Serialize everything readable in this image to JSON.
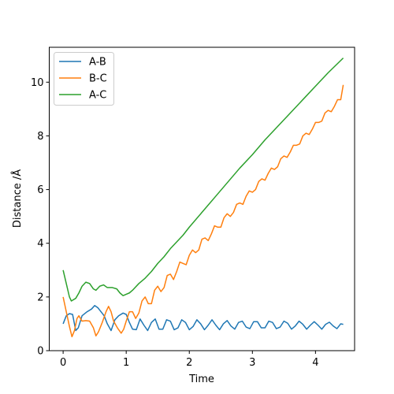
{
  "chart_data": {
    "type": "line",
    "title": "",
    "xlabel": "Time",
    "ylabel": "Distance /Å",
    "xlim": [
      -0.22,
      4.62
    ],
    "ylim": [
      0,
      11.3
    ],
    "xticks": [
      0,
      1,
      2,
      3,
      4
    ],
    "yticks": [
      0,
      2,
      4,
      6,
      8,
      10
    ],
    "grid": false,
    "legend": "top-left",
    "series": [
      {
        "name": "A-B",
        "color": "#1f77b4",
        "points": [
          [
            0,
            1.0
          ],
          [
            0.05,
            1.3
          ],
          [
            0.1,
            1.38
          ],
          [
            0.15,
            1.35
          ],
          [
            0.2,
            0.75
          ],
          [
            0.24,
            0.85
          ],
          [
            0.3,
            1.3
          ],
          [
            0.38,
            1.45
          ],
          [
            0.45,
            1.55
          ],
          [
            0.5,
            1.68
          ],
          [
            0.55,
            1.6
          ],
          [
            0.6,
            1.45
          ],
          [
            0.65,
            1.3
          ],
          [
            0.7,
            1.0
          ],
          [
            0.76,
            0.75
          ],
          [
            0.82,
            1.15
          ],
          [
            0.88,
            1.3
          ],
          [
            0.95,
            1.4
          ],
          [
            1.0,
            1.35
          ],
          [
            1.05,
            1.05
          ],
          [
            1.1,
            0.8
          ],
          [
            1.16,
            0.78
          ],
          [
            1.22,
            1.18
          ],
          [
            1.28,
            0.95
          ],
          [
            1.34,
            0.75
          ],
          [
            1.4,
            1.05
          ],
          [
            1.46,
            1.18
          ],
          [
            1.52,
            0.8
          ],
          [
            1.58,
            0.8
          ],
          [
            1.64,
            1.15
          ],
          [
            1.7,
            1.1
          ],
          [
            1.76,
            0.78
          ],
          [
            1.82,
            0.85
          ],
          [
            1.88,
            1.15
          ],
          [
            1.94,
            1.05
          ],
          [
            2.0,
            0.78
          ],
          [
            2.06,
            0.9
          ],
          [
            2.12,
            1.15
          ],
          [
            2.18,
            1.0
          ],
          [
            2.24,
            0.78
          ],
          [
            2.3,
            0.95
          ],
          [
            2.36,
            1.15
          ],
          [
            2.42,
            0.95
          ],
          [
            2.48,
            0.78
          ],
          [
            2.54,
            1.0
          ],
          [
            2.6,
            1.12
          ],
          [
            2.66,
            0.92
          ],
          [
            2.72,
            0.8
          ],
          [
            2.78,
            1.05
          ],
          [
            2.84,
            1.1
          ],
          [
            2.9,
            0.88
          ],
          [
            2.96,
            0.82
          ],
          [
            3.02,
            1.08
          ],
          [
            3.08,
            1.08
          ],
          [
            3.14,
            0.85
          ],
          [
            3.2,
            0.85
          ],
          [
            3.26,
            1.1
          ],
          [
            3.32,
            1.05
          ],
          [
            3.38,
            0.82
          ],
          [
            3.44,
            0.88
          ],
          [
            3.5,
            1.1
          ],
          [
            3.56,
            1.02
          ],
          [
            3.62,
            0.8
          ],
          [
            3.68,
            0.92
          ],
          [
            3.74,
            1.1
          ],
          [
            3.8,
            0.98
          ],
          [
            3.86,
            0.8
          ],
          [
            3.92,
            0.95
          ],
          [
            3.98,
            1.08
          ],
          [
            4.04,
            0.95
          ],
          [
            4.1,
            0.8
          ],
          [
            4.16,
            0.98
          ],
          [
            4.22,
            1.06
          ],
          [
            4.28,
            0.92
          ],
          [
            4.34,
            0.82
          ],
          [
            4.4,
            1.0
          ],
          [
            4.44,
            0.98
          ]
        ]
      },
      {
        "name": "B-C",
        "color": "#ff7f0e",
        "points": [
          [
            0,
            2.0
          ],
          [
            0.05,
            1.45
          ],
          [
            0.1,
            0.9
          ],
          [
            0.14,
            0.52
          ],
          [
            0.18,
            0.75
          ],
          [
            0.22,
            1.2
          ],
          [
            0.25,
            1.3
          ],
          [
            0.3,
            1.1
          ],
          [
            0.36,
            1.12
          ],
          [
            0.42,
            1.1
          ],
          [
            0.48,
            0.85
          ],
          [
            0.52,
            0.55
          ],
          [
            0.56,
            0.7
          ],
          [
            0.62,
            1.05
          ],
          [
            0.68,
            1.45
          ],
          [
            0.72,
            1.65
          ],
          [
            0.76,
            1.45
          ],
          [
            0.8,
            1.1
          ],
          [
            0.86,
            0.85
          ],
          [
            0.92,
            0.65
          ],
          [
            0.96,
            0.8
          ],
          [
            1.0,
            1.1
          ],
          [
            1.05,
            1.45
          ],
          [
            1.1,
            1.45
          ],
          [
            1.15,
            1.2
          ],
          [
            1.2,
            1.4
          ],
          [
            1.25,
            1.85
          ],
          [
            1.3,
            2.0
          ],
          [
            1.35,
            1.75
          ],
          [
            1.4,
            1.75
          ],
          [
            1.45,
            2.25
          ],
          [
            1.5,
            2.4
          ],
          [
            1.55,
            2.2
          ],
          [
            1.6,
            2.35
          ],
          [
            1.65,
            2.8
          ],
          [
            1.7,
            2.85
          ],
          [
            1.75,
            2.65
          ],
          [
            1.8,
            2.95
          ],
          [
            1.85,
            3.3
          ],
          [
            1.9,
            3.25
          ],
          [
            1.95,
            3.2
          ],
          [
            2.0,
            3.55
          ],
          [
            2.05,
            3.75
          ],
          [
            2.1,
            3.65
          ],
          [
            2.15,
            3.75
          ],
          [
            2.2,
            4.15
          ],
          [
            2.25,
            4.2
          ],
          [
            2.3,
            4.1
          ],
          [
            2.35,
            4.35
          ],
          [
            2.4,
            4.65
          ],
          [
            2.45,
            4.6
          ],
          [
            2.5,
            4.6
          ],
          [
            2.55,
            4.95
          ],
          [
            2.6,
            5.1
          ],
          [
            2.65,
            5.0
          ],
          [
            2.7,
            5.15
          ],
          [
            2.75,
            5.45
          ],
          [
            2.8,
            5.5
          ],
          [
            2.85,
            5.45
          ],
          [
            2.9,
            5.75
          ],
          [
            2.95,
            5.95
          ],
          [
            3.0,
            5.9
          ],
          [
            3.05,
            6.0
          ],
          [
            3.1,
            6.3
          ],
          [
            3.15,
            6.4
          ],
          [
            3.2,
            6.35
          ],
          [
            3.25,
            6.6
          ],
          [
            3.3,
            6.8
          ],
          [
            3.35,
            6.75
          ],
          [
            3.4,
            6.85
          ],
          [
            3.45,
            7.15
          ],
          [
            3.5,
            7.25
          ],
          [
            3.55,
            7.2
          ],
          [
            3.6,
            7.4
          ],
          [
            3.65,
            7.65
          ],
          [
            3.7,
            7.65
          ],
          [
            3.75,
            7.7
          ],
          [
            3.8,
            8.0
          ],
          [
            3.85,
            8.1
          ],
          [
            3.9,
            8.05
          ],
          [
            3.95,
            8.25
          ],
          [
            4.0,
            8.5
          ],
          [
            4.05,
            8.5
          ],
          [
            4.1,
            8.55
          ],
          [
            4.15,
            8.85
          ],
          [
            4.2,
            8.95
          ],
          [
            4.25,
            8.9
          ],
          [
            4.3,
            9.1
          ],
          [
            4.35,
            9.35
          ],
          [
            4.4,
            9.35
          ],
          [
            4.44,
            9.9
          ]
        ]
      },
      {
        "name": "A-C",
        "color": "#2ca02c",
        "points": [
          [
            0,
            3.0
          ],
          [
            0.05,
            2.5
          ],
          [
            0.1,
            2.0
          ],
          [
            0.13,
            1.85
          ],
          [
            0.2,
            1.95
          ],
          [
            0.25,
            2.15
          ],
          [
            0.3,
            2.4
          ],
          [
            0.36,
            2.55
          ],
          [
            0.42,
            2.5
          ],
          [
            0.48,
            2.3
          ],
          [
            0.52,
            2.25
          ],
          [
            0.58,
            2.4
          ],
          [
            0.64,
            2.45
          ],
          [
            0.7,
            2.35
          ],
          [
            0.78,
            2.35
          ],
          [
            0.85,
            2.3
          ],
          [
            0.9,
            2.15
          ],
          [
            0.95,
            2.05
          ],
          [
            1.0,
            2.1
          ],
          [
            1.05,
            2.15
          ],
          [
            1.1,
            2.25
          ],
          [
            1.2,
            2.5
          ],
          [
            1.3,
            2.7
          ],
          [
            1.4,
            2.95
          ],
          [
            1.5,
            3.25
          ],
          [
            1.6,
            3.5
          ],
          [
            1.7,
            3.8
          ],
          [
            1.8,
            4.05
          ],
          [
            1.9,
            4.3
          ],
          [
            2.0,
            4.6
          ],
          [
            2.2,
            5.15
          ],
          [
            2.4,
            5.7
          ],
          [
            2.6,
            6.25
          ],
          [
            2.8,
            6.8
          ],
          [
            3.0,
            7.3
          ],
          [
            3.2,
            7.85
          ],
          [
            3.4,
            8.35
          ],
          [
            3.6,
            8.85
          ],
          [
            3.8,
            9.35
          ],
          [
            4.0,
            9.85
          ],
          [
            4.2,
            10.35
          ],
          [
            4.44,
            10.9
          ]
        ]
      }
    ]
  }
}
